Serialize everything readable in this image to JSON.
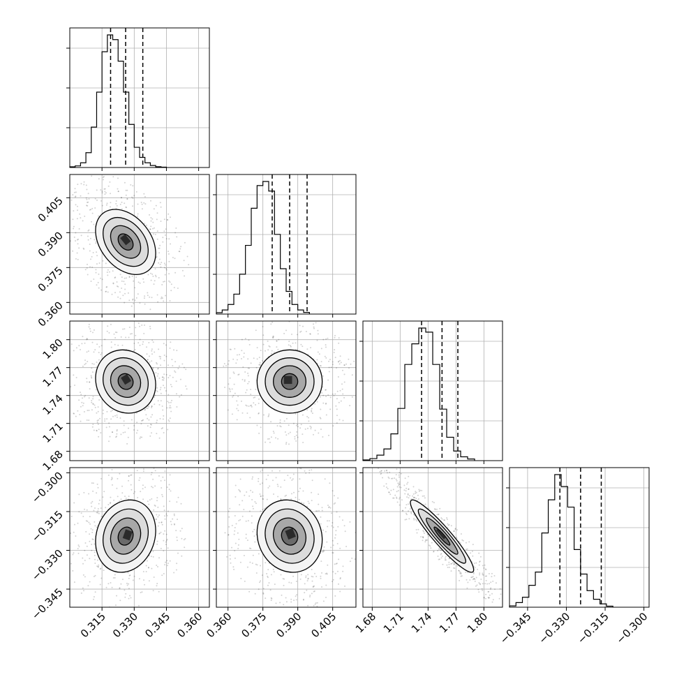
{
  "chart_data": {
    "type": "corner",
    "parameters": [
      {
        "name": "",
        "range": [
          0.3,
          0.365
        ],
        "ticks": [
          "0.315",
          "0.330",
          "0.345",
          "0.360"
        ],
        "tick_values": [
          0.315,
          0.33,
          0.345,
          0.36
        ],
        "quantiles": [
          0.319,
          0.326,
          0.334
        ],
        "histogram": {
          "bin_start": 0.3,
          "bin_width": 0.0025,
          "counts": [
            5,
            12,
            35,
            110,
            300,
            560,
            860,
            985,
            950,
            790,
            560,
            320,
            150,
            75,
            35,
            15,
            6,
            3
          ]
        }
      },
      {
        "name": "",
        "range": [
          0.355,
          0.415
        ],
        "ticks": [
          "0.360",
          "0.375",
          "0.390",
          "0.405"
        ],
        "tick_values": [
          0.36,
          0.375,
          0.39,
          0.405
        ],
        "quantiles": [
          0.379,
          0.3865,
          0.394
        ],
        "histogram": {
          "bin_start": 0.355,
          "bin_width": 0.0025,
          "counts": [
            10,
            30,
            70,
            145,
            290,
            500,
            770,
            935,
            965,
            895,
            580,
            330,
            165,
            70,
            30,
            12
          ]
        }
      },
      {
        "name": "",
        "range": [
          1.67,
          1.82
        ],
        "ticks": [
          "1.68",
          "1.71",
          "1.74",
          "1.77",
          "1.80"
        ],
        "tick_values": [
          1.68,
          1.71,
          1.74,
          1.77,
          1.8
        ],
        "quantiles": [
          1.733,
          1.755,
          1.772
        ],
        "histogram": {
          "bin_start": 1.67,
          "bin_width": 0.0075,
          "counts": [
            5,
            15,
            40,
            85,
            195,
            380,
            700,
            850,
            965,
            935,
            700,
            375,
            170,
            70,
            28,
            12
          ]
        }
      },
      {
        "name": "",
        "range": [
          -0.352,
          -0.298
        ],
        "ticks": [
          "−0.345",
          "−0.330",
          "−0.315",
          "−0.300"
        ],
        "tick_values": [
          -0.345,
          -0.33,
          -0.315,
          -0.3
        ],
        "quantiles": [
          -0.3325,
          -0.3245,
          -0.3165
        ],
        "histogram": {
          "bin_start": -0.352,
          "bin_width": 0.0025,
          "counts": [
            10,
            35,
            75,
            165,
            265,
            560,
            810,
            1000,
            910,
            755,
            435,
            250,
            125,
            60,
            25,
            8
          ]
        }
      }
    ],
    "pairs": [
      {
        "row": 1,
        "col": 0,
        "mean": [
          0.326,
          0.386
        ],
        "sd": [
          0.007,
          0.007
        ],
        "rho": -0.35
      },
      {
        "row": 2,
        "col": 0,
        "mean": [
          0.326,
          1.755
        ],
        "sd": [
          0.007,
          0.017
        ],
        "rho": -0.1
      },
      {
        "row": 2,
        "col": 1,
        "mean": [
          0.3865,
          1.755
        ],
        "sd": [
          0.007,
          0.017
        ],
        "rho": 0.0
      },
      {
        "row": 3,
        "col": 0,
        "mean": [
          0.326,
          -0.3245
        ],
        "sd": [
          0.007,
          0.007
        ],
        "rho": 0.15
      },
      {
        "row": 3,
        "col": 1,
        "mean": [
          0.3865,
          -0.3245
        ],
        "sd": [
          0.007,
          0.007
        ],
        "rho": -0.1
      },
      {
        "row": 3,
        "col": 2,
        "mean": [
          1.755,
          -0.3245
        ],
        "sd": [
          0.017,
          0.007
        ],
        "rho": -0.93
      }
    ],
    "contour_levels_sigma": [
      0.5,
      1.0,
      1.5,
      2.0
    ],
    "grid": true,
    "title": "",
    "legend": ""
  }
}
